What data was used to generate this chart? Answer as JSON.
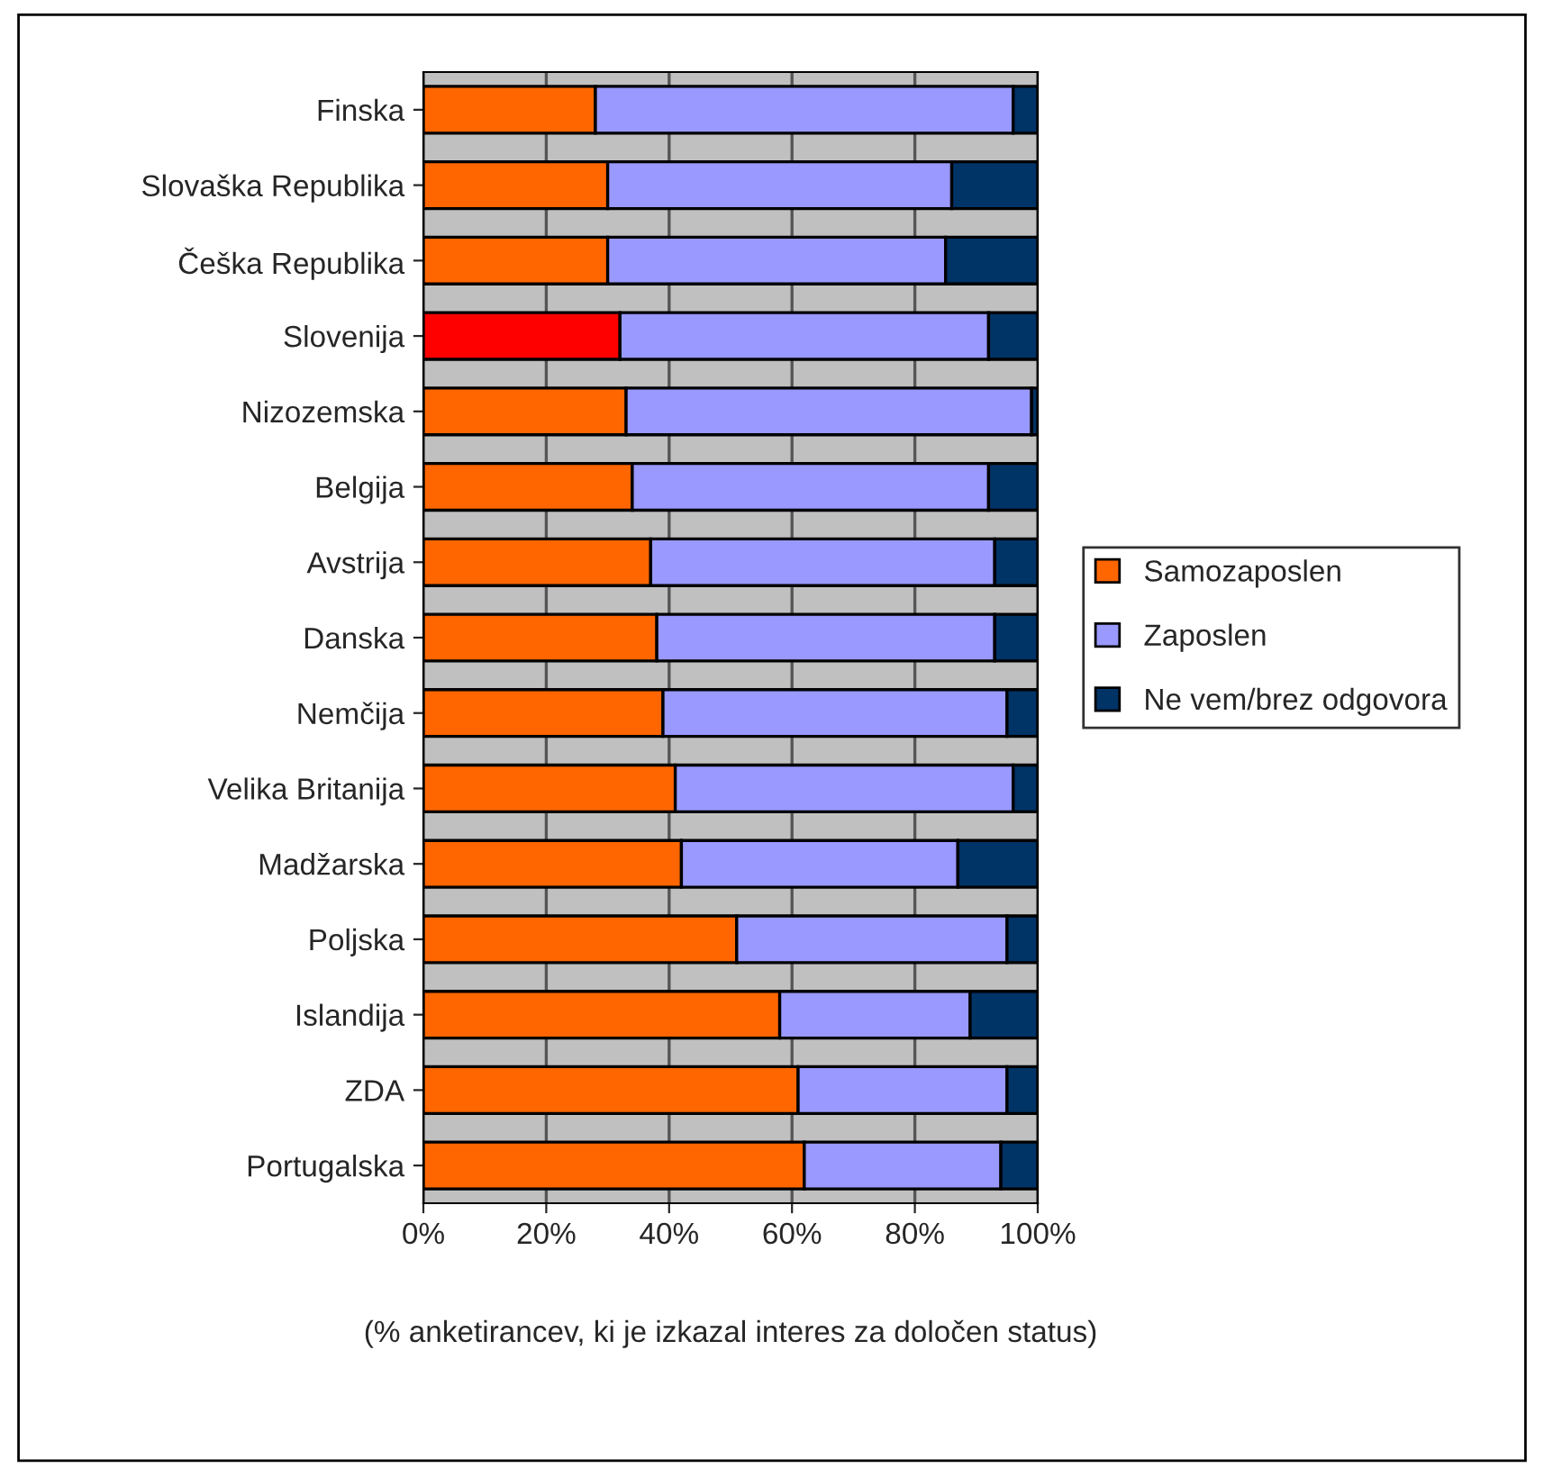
{
  "chart_data": {
    "type": "bar",
    "orientation": "horizontal",
    "stacked": true,
    "xlabel": "(% anketirancev, ki je izkazal interes za določen status)",
    "categories": [
      "Finska",
      "Slovaška Republika",
      "Češka Republika",
      "Slovenija",
      "Nizozemska",
      "Belgija",
      "Avstrija",
      "Danska",
      "Nemčija",
      "Velika Britanija",
      "Madžarska",
      "Poljska",
      "Islandija",
      "ZDA",
      "Portugalska"
    ],
    "series": [
      {
        "name": "Samozaposlen",
        "color": "#ff6600",
        "colors": [
          "#ff6600",
          "#ff6600",
          "#ff6600",
          "#ff0000",
          "#ff6600",
          "#ff6600",
          "#ff6600",
          "#ff6600",
          "#ff6600",
          "#ff6600",
          "#ff6600",
          "#ff6600",
          "#ff6600",
          "#ff6600",
          "#ff6600"
        ],
        "values": [
          28,
          30,
          30,
          32,
          33,
          34,
          37,
          38,
          39,
          41,
          42,
          51,
          58,
          61,
          62
        ]
      },
      {
        "name": "Zaposlen",
        "color": "#9999ff",
        "values": [
          68,
          56,
          55,
          60,
          66,
          58,
          56,
          55,
          56,
          55,
          45,
          44,
          31,
          34,
          32
        ]
      },
      {
        "name": "Ne vem/brez odgovora",
        "color": "#003366",
        "values": [
          4,
          14,
          15,
          8,
          1,
          8,
          7,
          7,
          5,
          4,
          13,
          5,
          11,
          5,
          6
        ]
      }
    ],
    "xlim": [
      0,
      100
    ],
    "xticks": [
      {
        "value": 0,
        "label": "0%"
      },
      {
        "value": 20,
        "label": "20%"
      },
      {
        "value": 40,
        "label": "40%"
      },
      {
        "value": 60,
        "label": "60%"
      },
      {
        "value": 80,
        "label": "80%"
      },
      {
        "value": 100,
        "label": "100%"
      }
    ],
    "grid": "x",
    "legend": "right"
  }
}
